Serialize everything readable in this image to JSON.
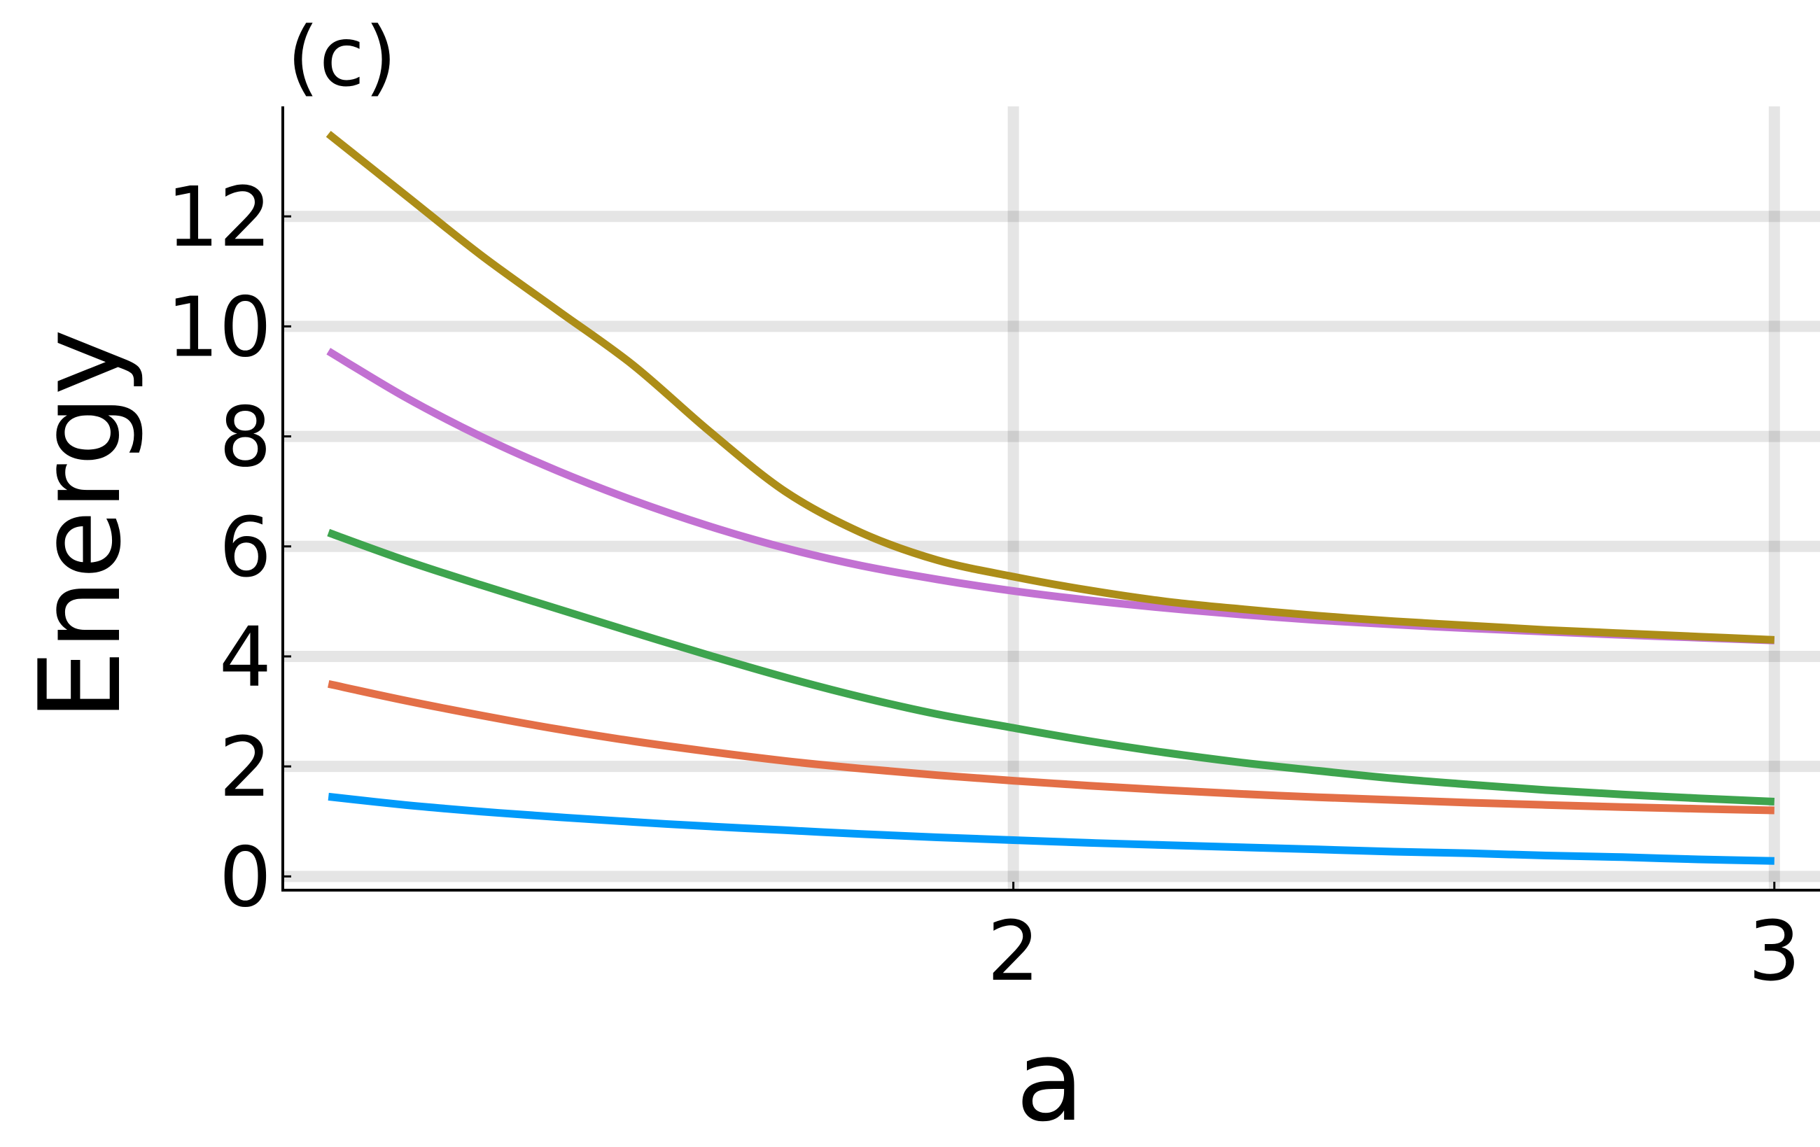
{
  "chart_data": {
    "type": "line",
    "panel_label": "(c)",
    "xlabel": "a",
    "ylabel": "Energy",
    "xlim": [
      1.04,
      3.06
    ],
    "ylim": [
      -0.25,
      14.0
    ],
    "xticks": [
      2,
      3
    ],
    "yticks": [
      0,
      2,
      4,
      6,
      8,
      10,
      12
    ],
    "grid": true,
    "legend": "none",
    "x": [
      1.1,
      1.2,
      1.3,
      1.4,
      1.5,
      1.6,
      1.7,
      1.8,
      1.9,
      2.0,
      2.1,
      2.2,
      2.3,
      2.4,
      2.5,
      2.6,
      2.7,
      2.8,
      2.9,
      3.0
    ],
    "series": [
      {
        "color": "#009AFA",
        "values": [
          1.45,
          1.3,
          1.18,
          1.08,
          0.99,
          0.91,
          0.84,
          0.77,
          0.71,
          0.66,
          0.61,
          0.57,
          0.53,
          0.49,
          0.45,
          0.42,
          0.38,
          0.35,
          0.31,
          0.28
        ]
      },
      {
        "color": "#E36F47",
        "values": [
          3.5,
          3.2,
          2.93,
          2.68,
          2.46,
          2.27,
          2.1,
          1.96,
          1.84,
          1.74,
          1.65,
          1.57,
          1.5,
          1.44,
          1.39,
          1.34,
          1.3,
          1.26,
          1.23,
          1.2
        ]
      },
      {
        "color": "#3EA44E",
        "values": [
          6.25,
          5.75,
          5.3,
          4.87,
          4.44,
          4.02,
          3.62,
          3.26,
          2.95,
          2.7,
          2.46,
          2.25,
          2.07,
          1.92,
          1.78,
          1.67,
          1.57,
          1.49,
          1.42,
          1.36
        ]
      },
      {
        "color": "#C271D2",
        "values": [
          9.55,
          8.72,
          8.0,
          7.38,
          6.84,
          6.37,
          5.97,
          5.65,
          5.4,
          5.19,
          5.02,
          4.88,
          4.76,
          4.66,
          4.58,
          4.51,
          4.45,
          4.39,
          4.34,
          4.29
        ]
      },
      {
        "color": "#AC8D18",
        "values": [
          13.5,
          12.4,
          11.3,
          10.3,
          9.3,
          8.1,
          7.0,
          6.25,
          5.75,
          5.45,
          5.2,
          5.0,
          4.86,
          4.74,
          4.64,
          4.56,
          4.48,
          4.42,
          4.36,
          4.3
        ]
      }
    ]
  }
}
